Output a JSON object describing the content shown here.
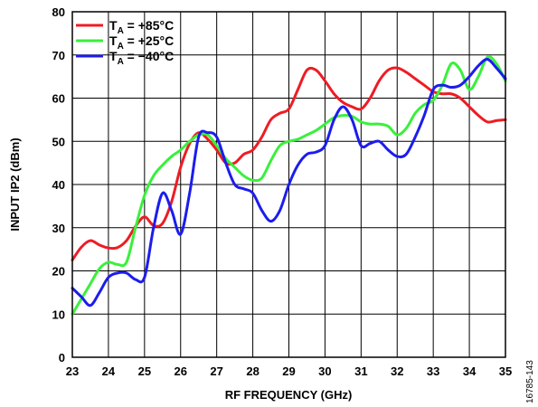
{
  "chart_data": {
    "type": "line",
    "title": "",
    "xlabel": "RF FREQUENCY (GHz)",
    "ylabel": "INPUT IP2 (dBm)",
    "xlim": [
      23,
      35
    ],
    "ylim": [
      0,
      80
    ],
    "x_ticks": [
      "23",
      "24",
      "25",
      "26",
      "27",
      "28",
      "29",
      "30",
      "31",
      "32",
      "33",
      "34",
      "35"
    ],
    "y_ticks": [
      "0",
      "10",
      "20",
      "30",
      "40",
      "50",
      "60",
      "70",
      "80"
    ],
    "grid": true,
    "legend_position": "top-left",
    "series": [
      {
        "name": "+85°C",
        "label_prefix": "T",
        "label_sub": "A",
        "label_suffix": " = +85°C",
        "color": "#ee1c24",
        "points": [
          [
            23,
            22.5
          ],
          [
            23.25,
            25.5
          ],
          [
            23.5,
            27
          ],
          [
            23.75,
            26
          ],
          [
            24,
            25.3
          ],
          [
            24.25,
            25.4
          ],
          [
            24.5,
            27
          ],
          [
            24.75,
            30.3
          ],
          [
            25,
            32.5
          ],
          [
            25.25,
            30.5
          ],
          [
            25.5,
            31
          ],
          [
            25.75,
            36
          ],
          [
            26,
            44
          ],
          [
            26.25,
            49.5
          ],
          [
            26.5,
            52
          ],
          [
            26.75,
            50.5
          ],
          [
            27,
            48
          ],
          [
            27.25,
            45
          ],
          [
            27.5,
            45
          ],
          [
            27.75,
            47
          ],
          [
            28,
            48
          ],
          [
            28.25,
            51
          ],
          [
            28.5,
            55
          ],
          [
            28.75,
            56.5
          ],
          [
            29,
            57.5
          ],
          [
            29.25,
            62
          ],
          [
            29.5,
            66.5
          ],
          [
            29.75,
            66.5
          ],
          [
            30,
            64
          ],
          [
            30.25,
            61
          ],
          [
            30.5,
            59
          ],
          [
            30.75,
            58
          ],
          [
            31,
            57.5
          ],
          [
            31.25,
            60
          ],
          [
            31.5,
            64
          ],
          [
            31.75,
            66.5
          ],
          [
            32,
            67
          ],
          [
            32.25,
            66
          ],
          [
            32.5,
            64.5
          ],
          [
            32.75,
            63
          ],
          [
            33,
            61.5
          ],
          [
            33.25,
            61
          ],
          [
            33.5,
            61
          ],
          [
            33.75,
            60
          ],
          [
            34,
            58
          ],
          [
            34.25,
            56
          ],
          [
            34.5,
            54.5
          ],
          [
            34.75,
            54.8
          ],
          [
            35,
            55
          ]
        ]
      },
      {
        "name": "+25°C",
        "label_prefix": "T",
        "label_sub": "A",
        "label_suffix": " = +25°C",
        "color": "#39f03b",
        "points": [
          [
            23,
            10
          ],
          [
            23.25,
            13.5
          ],
          [
            23.5,
            17
          ],
          [
            23.75,
            20.5
          ],
          [
            24,
            22
          ],
          [
            24.25,
            21.5
          ],
          [
            24.5,
            22
          ],
          [
            24.75,
            30
          ],
          [
            25,
            37.5
          ],
          [
            25.25,
            42
          ],
          [
            25.5,
            44.5
          ],
          [
            25.75,
            46.5
          ],
          [
            26,
            48
          ],
          [
            26.25,
            50
          ],
          [
            26.5,
            51.5
          ],
          [
            26.75,
            51.5
          ],
          [
            27,
            49
          ],
          [
            27.25,
            46
          ],
          [
            27.5,
            44
          ],
          [
            27.75,
            42
          ],
          [
            28,
            41
          ],
          [
            28.25,
            41.5
          ],
          [
            28.5,
            45.5
          ],
          [
            28.75,
            49
          ],
          [
            29,
            50
          ],
          [
            29.25,
            50.5
          ],
          [
            29.5,
            51.5
          ],
          [
            29.75,
            52.5
          ],
          [
            30,
            54
          ],
          [
            30.25,
            55.5
          ],
          [
            30.5,
            56
          ],
          [
            30.75,
            55.8
          ],
          [
            31,
            54.5
          ],
          [
            31.25,
            54
          ],
          [
            31.5,
            54
          ],
          [
            31.75,
            53.5
          ],
          [
            32,
            51.5
          ],
          [
            32.25,
            53
          ],
          [
            32.5,
            56.5
          ],
          [
            32.75,
            58.5
          ],
          [
            33,
            59.5
          ],
          [
            33.25,
            63
          ],
          [
            33.5,
            68
          ],
          [
            33.75,
            66.5
          ],
          [
            34,
            62
          ],
          [
            34.25,
            65
          ],
          [
            34.5,
            69.5
          ],
          [
            34.75,
            68
          ],
          [
            35,
            64
          ]
        ]
      },
      {
        "name": "−40°C",
        "label_prefix": "T",
        "label_sub": "A",
        "label_suffix": " = −40°C",
        "color": "#1c1cee",
        "points": [
          [
            23,
            16
          ],
          [
            23.25,
            14
          ],
          [
            23.5,
            12
          ],
          [
            23.75,
            15
          ],
          [
            24,
            18.5
          ],
          [
            24.25,
            19.5
          ],
          [
            24.5,
            19.5
          ],
          [
            24.75,
            18
          ],
          [
            25,
            18.5
          ],
          [
            25.25,
            30
          ],
          [
            25.5,
            38
          ],
          [
            25.75,
            34
          ],
          [
            26,
            28.5
          ],
          [
            26.25,
            38
          ],
          [
            26.5,
            51
          ],
          [
            26.75,
            52
          ],
          [
            27,
            51
          ],
          [
            27.25,
            45
          ],
          [
            27.5,
            40
          ],
          [
            27.75,
            39
          ],
          [
            28,
            38
          ],
          [
            28.25,
            34
          ],
          [
            28.5,
            31.5
          ],
          [
            28.75,
            34
          ],
          [
            29,
            40
          ],
          [
            29.25,
            44.5
          ],
          [
            29.5,
            47
          ],
          [
            29.75,
            47.5
          ],
          [
            30,
            49
          ],
          [
            30.25,
            55
          ],
          [
            30.5,
            58
          ],
          [
            30.75,
            55
          ],
          [
            31,
            49
          ],
          [
            31.25,
            49.5
          ],
          [
            31.5,
            50
          ],
          [
            31.75,
            48
          ],
          [
            32,
            46.5
          ],
          [
            32.25,
            47
          ],
          [
            32.5,
            51
          ],
          [
            32.75,
            56
          ],
          [
            33,
            62
          ],
          [
            33.25,
            63
          ],
          [
            33.5,
            62.5
          ],
          [
            33.75,
            63
          ],
          [
            34,
            65
          ],
          [
            34.25,
            67.5
          ],
          [
            34.5,
            69
          ],
          [
            34.75,
            67
          ],
          [
            35,
            64.5
          ]
        ]
      }
    ]
  },
  "figure_id": "16785-143"
}
